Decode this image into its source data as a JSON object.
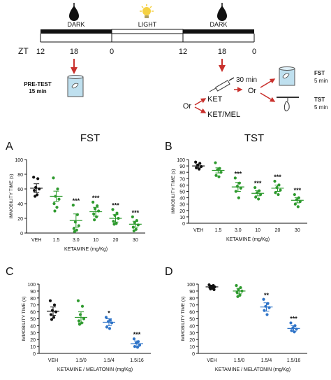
{
  "colors": {
    "black": "#111111",
    "green": "#2e9a2e",
    "blue": "#2f74c8",
    "red": "#c9302c",
    "bulb": "#f5d142"
  },
  "timeline": {
    "zt_label": "ZT",
    "ticks": [
      "12",
      "18",
      "0",
      "12",
      "18",
      "0"
    ],
    "segments": [
      "DARK",
      "LIGHT",
      "DARK"
    ],
    "icons": [
      "moon-drop-icon",
      "sun-bulb-icon",
      "moon-drop-icon"
    ]
  },
  "protocol": {
    "pretest_line1": "PRE-TEST",
    "pretest_line2": "15 min",
    "or_left": "Or",
    "ket": "KET",
    "ketmel": "KET/MEL",
    "thirty_min": "30 min",
    "or_right": "Or",
    "fst_label": "FST",
    "fst_time": "5 min",
    "tst_label": "TST",
    "tst_time": "5 min"
  },
  "chart_data": [
    {
      "panel": "A",
      "title": "FST",
      "type": "scatter",
      "ylabel": "IMMOBILITY TIME (s)",
      "xlabel": "KETAMINE (mg/Kg)",
      "ylim": [
        0,
        100
      ],
      "yticks": [
        0,
        20,
        40,
        60,
        80,
        100
      ],
      "categories": [
        "VEH",
        "1.5",
        "3.0",
        "10",
        "20",
        "30"
      ],
      "colors": [
        "black",
        "green",
        "green",
        "green",
        "green",
        "green"
      ],
      "means": [
        61,
        50,
        17,
        29,
        20,
        12
      ],
      "errors": [
        6,
        7,
        9,
        6,
        5,
        4
      ],
      "significance": [
        "",
        "",
        "***",
        "***",
        "***",
        "***"
      ],
      "points": [
        [
          76,
          74,
          62,
          60,
          58,
          52,
          50
        ],
        [
          75,
          60,
          50,
          46,
          40,
          35,
          30
        ],
        [
          38,
          25,
          15,
          10,
          6,
          4,
          2
        ],
        [
          42,
          37,
          33,
          30,
          26,
          22,
          18
        ],
        [
          32,
          27,
          24,
          20,
          16,
          13,
          12
        ],
        [
          22,
          17,
          14,
          11,
          8,
          5,
          3
        ]
      ]
    },
    {
      "panel": "B",
      "title": "TST",
      "type": "scatter",
      "ylabel": "IMMOBILITY TIME (s)",
      "xlabel": "KETAMINE (mg/Kg)",
      "ylim": [
        0,
        100
      ],
      "yticks": [
        0,
        10,
        20,
        30,
        40,
        50,
        60,
        70,
        80,
        90,
        100
      ],
      "categories": [
        "VEH",
        "1.5",
        "3.0",
        "10",
        "20",
        "30"
      ],
      "colors": [
        "black",
        "green",
        "green",
        "green",
        "green",
        "green"
      ],
      "means": [
        90,
        83,
        57,
        47,
        55,
        36
      ],
      "errors": [
        3,
        4,
        7,
        4,
        5,
        4
      ],
      "significance": [
        "",
        "",
        "***",
        "***",
        "***",
        "***"
      ],
      "points": [
        [
          96,
          94,
          91,
          89,
          87,
          85
        ],
        [
          95,
          86,
          84,
          80,
          75,
          73
        ],
        [
          71,
          63,
          58,
          55,
          50,
          40
        ],
        [
          56,
          51,
          48,
          45,
          41,
          38
        ],
        [
          66,
          60,
          56,
          52,
          48,
          45
        ],
        [
          45,
          40,
          37,
          34,
          30,
          26
        ]
      ]
    },
    {
      "panel": "C",
      "type": "scatter",
      "ylabel": "IMMOBILITY TIME (s)",
      "xlabel": "KETAMINE / MELATONIN (mg/Kg)",
      "ylim": [
        0,
        100
      ],
      "yticks": [
        0,
        10,
        20,
        30,
        40,
        50,
        60,
        70,
        80,
        90,
        100
      ],
      "categories": [
        "VEH",
        "1.5/0",
        "1.5/4",
        "1.5/16"
      ],
      "colors": [
        "black",
        "green",
        "blue",
        "blue"
      ],
      "means": [
        61,
        52,
        45,
        14
      ],
      "errors": [
        6,
        8,
        5,
        4
      ],
      "significance": [
        "",
        "",
        "*",
        "***"
      ],
      "points": [
        [
          76,
          70,
          62,
          60,
          56,
          52,
          49
        ],
        [
          76,
          68,
          56,
          50,
          47,
          44,
          42
        ],
        [
          52,
          48,
          46,
          44,
          38,
          36
        ],
        [
          21,
          17,
          15,
          12,
          10,
          9
        ]
      ]
    },
    {
      "panel": "D",
      "type": "scatter",
      "ylabel": "IMMOBILITY TIME (s)",
      "xlabel": "KETAMINE / MELATONIN (mg/Kg)",
      "ylim": [
        0,
        100
      ],
      "yticks": [
        0,
        10,
        20,
        30,
        40,
        50,
        60,
        70,
        80,
        90,
        100
      ],
      "categories": [
        "VEH",
        "1.5/0",
        "1.5/4",
        "1.5/16"
      ],
      "colors": [
        "black",
        "green",
        "blue",
        "blue"
      ],
      "means": [
        96,
        90,
        67,
        36
      ],
      "errors": [
        2,
        4,
        6,
        4
      ],
      "significance": [
        "",
        "",
        "**",
        "***"
      ],
      "points": [
        [
          99,
          98,
          97,
          96,
          95,
          94,
          93,
          92
        ],
        [
          98,
          95,
          92,
          90,
          88,
          84,
          82
        ],
        [
          78,
          72,
          68,
          66,
          62,
          56
        ],
        [
          44,
          40,
          37,
          35,
          33,
          31
        ]
      ]
    }
  ]
}
